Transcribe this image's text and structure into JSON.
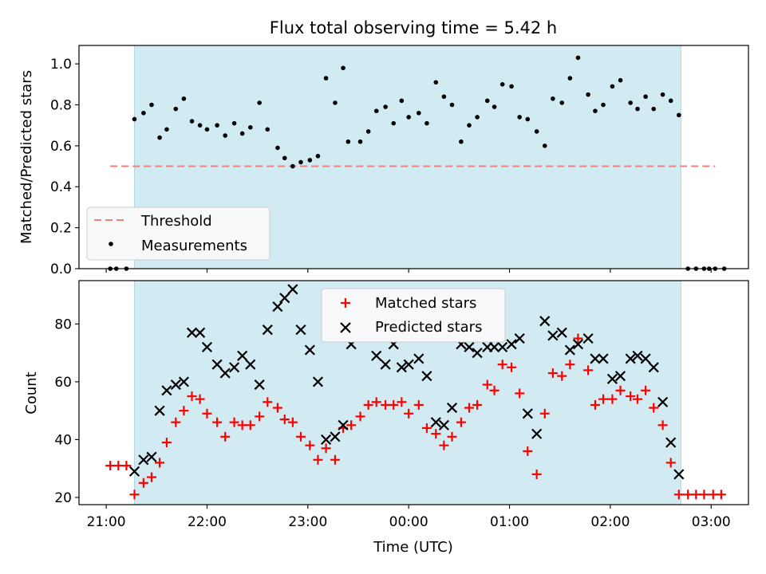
{
  "chart_data": {
    "title": "Flux total observing time = 5.42 h",
    "xlabel": "Time (UTC)",
    "x_tick_labels": [
      "21:00",
      "22:00",
      "23:00",
      "00:00",
      "01:00",
      "02:00",
      "03:00"
    ],
    "x_ticks_hours": [
      0,
      1,
      2,
      3,
      4,
      5,
      6
    ],
    "x_origin": "21:00",
    "xlim": [
      -0.27,
      6.37
    ],
    "shaded_interval": [
      0.28,
      5.7
    ],
    "shade_color": "#add8e6",
    "panels": [
      {
        "type": "scatter",
        "ylabel": "Matched/Predicted stars",
        "ylim": [
          0,
          1.09
        ],
        "y_ticks": [
          0.0,
          0.2,
          0.4,
          0.6,
          0.8,
          1.0
        ],
        "y_tick_labels": [
          "0.0",
          "0.2",
          "0.4",
          "0.6",
          "0.8",
          "1.0"
        ],
        "legend_position": "lower-left",
        "threshold": {
          "name": "Threshold",
          "value": 0.5,
          "x_range": [
            0.04,
            6.04
          ],
          "color": "#f08080"
        },
        "series": [
          {
            "name": "Measurements",
            "color": "#000000",
            "marker": "dot",
            "x": [
              0.04,
              0.1,
              0.2,
              0.28,
              0.37,
              0.45,
              0.53,
              0.6,
              0.69,
              0.77,
              0.85,
              0.93,
              1.0,
              1.1,
              1.18,
              1.27,
              1.35,
              1.43,
              1.52,
              1.6,
              1.7,
              1.77,
              1.85,
              1.93,
              2.02,
              2.1,
              2.18,
              2.27,
              2.35,
              2.4,
              2.52,
              2.6,
              2.68,
              2.77,
              2.85,
              2.93,
              3.0,
              3.1,
              3.18,
              3.27,
              3.35,
              3.43,
              3.52,
              3.6,
              3.68,
              3.78,
              3.85,
              3.93,
              4.02,
              4.1,
              4.18,
              4.27,
              4.35,
              4.43,
              4.52,
              4.6,
              4.68,
              4.78,
              4.85,
              4.93,
              5.02,
              5.1,
              5.2,
              5.27,
              5.35,
              5.43,
              5.52,
              5.6,
              5.68,
              5.77,
              5.85,
              5.93,
              5.98,
              6.04,
              6.13
            ],
            "y": [
              0,
              0,
              0,
              0.73,
              0.76,
              0.8,
              0.64,
              0.68,
              0.78,
              0.83,
              0.72,
              0.7,
              0.68,
              0.7,
              0.65,
              0.71,
              0.66,
              0.69,
              0.81,
              0.68,
              0.59,
              0.54,
              0.5,
              0.52,
              0.53,
              0.55,
              0.93,
              0.81,
              0.98,
              0.62,
              0.62,
              0.67,
              0.77,
              0.79,
              0.71,
              0.82,
              0.74,
              0.76,
              0.71,
              0.91,
              0.84,
              0.8,
              0.62,
              0.7,
              0.74,
              0.82,
              0.79,
              0.9,
              0.89,
              0.74,
              0.73,
              0.67,
              0.6,
              0.83,
              0.81,
              0.93,
              1.03,
              0.85,
              0.77,
              0.8,
              0.89,
              0.92,
              0.81,
              0.78,
              0.84,
              0.78,
              0.85,
              0.82,
              0.75,
              0,
              0,
              0,
              0,
              0,
              0
            ]
          }
        ]
      },
      {
        "type": "scatter",
        "ylabel": "Count",
        "ylim": [
          17.5,
          95
        ],
        "y_ticks": [
          20,
          40,
          60,
          80
        ],
        "y_tick_labels": [
          "20",
          "40",
          "60",
          "80"
        ],
        "legend_position": "upper-center",
        "series": [
          {
            "name": "Matched stars",
            "color": "#ff0000",
            "marker": "plus",
            "x": [
              0.04,
              0.12,
              0.2,
              0.28,
              0.37,
              0.45,
              0.53,
              0.6,
              0.69,
              0.77,
              0.85,
              0.93,
              1.0,
              1.1,
              1.18,
              1.27,
              1.35,
              1.43,
              1.52,
              1.6,
              1.7,
              1.77,
              1.85,
              1.93,
              2.02,
              2.1,
              2.18,
              2.27,
              2.35,
              2.43,
              2.52,
              2.6,
              2.68,
              2.77,
              2.85,
              2.93,
              3.0,
              3.1,
              3.18,
              3.27,
              3.35,
              3.43,
              3.52,
              3.6,
              3.68,
              3.78,
              3.85,
              3.93,
              4.02,
              4.1,
              4.18,
              4.27,
              4.35,
              4.43,
              4.52,
              4.6,
              4.68,
              4.78,
              4.85,
              4.93,
              5.02,
              5.1,
              5.2,
              5.27,
              5.35,
              5.43,
              5.52,
              5.6,
              5.68,
              5.77,
              5.85,
              5.93,
              6.02,
              6.1
            ],
            "y": [
              31,
              31,
              31,
              21,
              25,
              27,
              32,
              39,
              46,
              50,
              55,
              54,
              49,
              46,
              41,
              46,
              45,
              45,
              48,
              53,
              51,
              47,
              46,
              41,
              38,
              33,
              37,
              33,
              44,
              45,
              48,
              52,
              53,
              52,
              52,
              53,
              49,
              52,
              44,
              42,
              38,
              41,
              46,
              51,
              52,
              59,
              57,
              66,
              65,
              56,
              36,
              28,
              49,
              63,
              62,
              66,
              75,
              64,
              52,
              54,
              54,
              57,
              55,
              54,
              57,
              51,
              45,
              32,
              21,
              21,
              21,
              21,
              21,
              21
            ]
          },
          {
            "name": "Predicted stars",
            "color": "#000000",
            "marker": "x",
            "x": [
              0.28,
              0.37,
              0.45,
              0.53,
              0.6,
              0.69,
              0.77,
              0.85,
              0.93,
              1.0,
              1.1,
              1.18,
              1.27,
              1.35,
              1.43,
              1.52,
              1.6,
              1.7,
              1.77,
              1.85,
              1.93,
              2.02,
              2.1,
              2.18,
              2.27,
              2.35,
              2.43,
              2.52,
              2.6,
              2.68,
              2.77,
              2.85,
              2.93,
              3.0,
              3.1,
              3.18,
              3.27,
              3.35,
              3.43,
              3.52,
              3.6,
              3.68,
              3.78,
              3.85,
              3.93,
              4.02,
              4.1,
              4.18,
              4.27,
              4.35,
              4.43,
              4.52,
              4.6,
              4.68,
              4.78,
              4.85,
              4.93,
              5.02,
              5.1,
              5.2,
              5.27,
              5.35,
              5.43,
              5.52,
              5.6,
              5.68
            ],
            "y": [
              29,
              33,
              34,
              50,
              57,
              59,
              60,
              77,
              77,
              72,
              66,
              63,
              65,
              69,
              66,
              59,
              78,
              86,
              89,
              92,
              78,
              71,
              60,
              40,
              41,
              45,
              73,
              77,
              77,
              69,
              66,
              73,
              65,
              66,
              68,
              62,
              46,
              45,
              51,
              73,
              72,
              70,
              72,
              72,
              72,
              73,
              75,
              49,
              42,
              81,
              76,
              77,
              71,
              73,
              75,
              68,
              68,
              61,
              62,
              68,
              69,
              68,
              65,
              53,
              39,
              28
            ]
          }
        ]
      }
    ]
  }
}
